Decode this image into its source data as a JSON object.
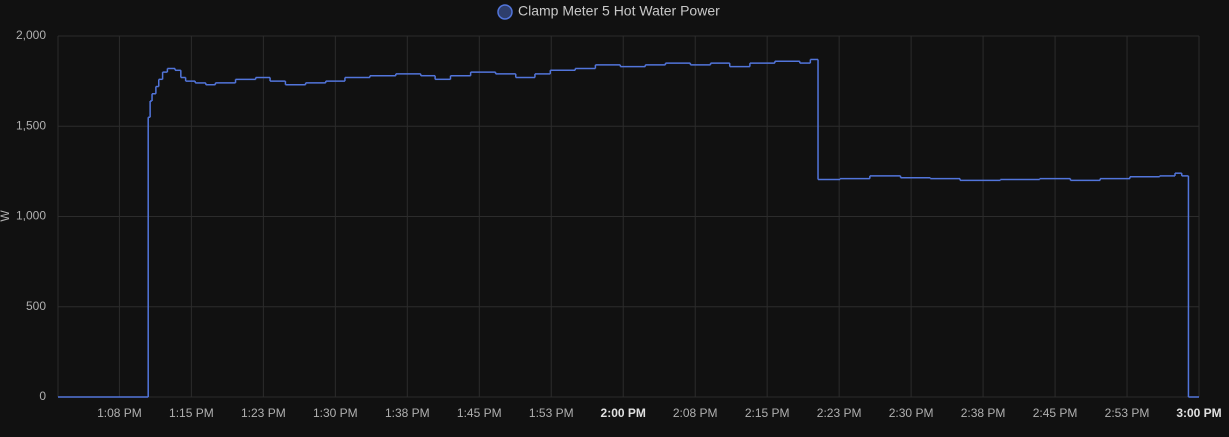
{
  "chart_data": {
    "type": "step-line",
    "legend_title": "Clamp Meter 5 Hot Water Power",
    "y_label": "W",
    "xlim": [
      61.1,
      180
    ],
    "ylim": [
      0,
      2000
    ],
    "yticks": [
      0,
      500,
      {
        "value": 1000,
        "label": "1,000"
      },
      {
        "value": 1500,
        "label": "1,500"
      },
      {
        "value": 2000,
        "label": "2,000"
      }
    ],
    "xticks": [
      {
        "value": 67.5,
        "label": "1:08 PM"
      },
      {
        "value": 75,
        "label": "1:15 PM"
      },
      {
        "value": 82.5,
        "label": "1:23 PM"
      },
      {
        "value": 90,
        "label": "1:30 PM"
      },
      {
        "value": 97.5,
        "label": "1:38 PM"
      },
      {
        "value": 105,
        "label": "1:45 PM"
      },
      {
        "value": 112.5,
        "label": "1:53 PM"
      },
      {
        "value": 120,
        "label": "2:00 PM"
      },
      {
        "value": 127.5,
        "label": "2:08 PM"
      },
      {
        "value": 135,
        "label": "2:15 PM"
      },
      {
        "value": 142.5,
        "label": "2:23 PM"
      },
      {
        "value": 150,
        "label": "2:30 PM"
      },
      {
        "value": 157.5,
        "label": "2:38 PM"
      },
      {
        "value": 165,
        "label": "2:45 PM"
      },
      {
        "value": 172.5,
        "label": "2:53 PM"
      },
      {
        "value": 180,
        "label": "3:00 PM"
      }
    ],
    "grid": true,
    "series": [
      {
        "name": "Clamp Meter 5 Hot Water Power",
        "color": "#5275db",
        "x": [
          61.1,
          70.5,
          70.7,
          70.9,
          71.3,
          71.6,
          72.0,
          72.5,
          73.3,
          73.9,
          74.4,
          75.4,
          76.5,
          77.5,
          79.6,
          81.7,
          83.2,
          84.8,
          86.9,
          89.0,
          91.0,
          93.6,
          96.3,
          98.9,
          100.4,
          102.0,
          104.1,
          106.7,
          108.8,
          110.8,
          112.4,
          115.0,
          117.1,
          119.7,
          122.3,
          124.4,
          127.0,
          129.1,
          131.1,
          133.2,
          135.8,
          138.4,
          139.5,
          140.3,
          142.6,
          145.7,
          148.9,
          152.0,
          155.1,
          159.3,
          163.4,
          166.6,
          169.7,
          172.8,
          175.9,
          177.5,
          178.2,
          178.9
        ],
        "values": [
          0,
          1550,
          1640,
          1680,
          1720,
          1760,
          1800,
          1820,
          1810,
          1770,
          1750,
          1740,
          1730,
          1740,
          1760,
          1770,
          1750,
          1730,
          1740,
          1750,
          1770,
          1780,
          1790,
          1780,
          1760,
          1780,
          1800,
          1790,
          1770,
          1790,
          1810,
          1820,
          1840,
          1830,
          1840,
          1850,
          1840,
          1850,
          1830,
          1850,
          1860,
          1850,
          1870,
          1205,
          1210,
          1225,
          1215,
          1210,
          1200,
          1205,
          1210,
          1200,
          1210,
          1220,
          1225,
          1240,
          1225,
          0
        ]
      }
    ]
  }
}
